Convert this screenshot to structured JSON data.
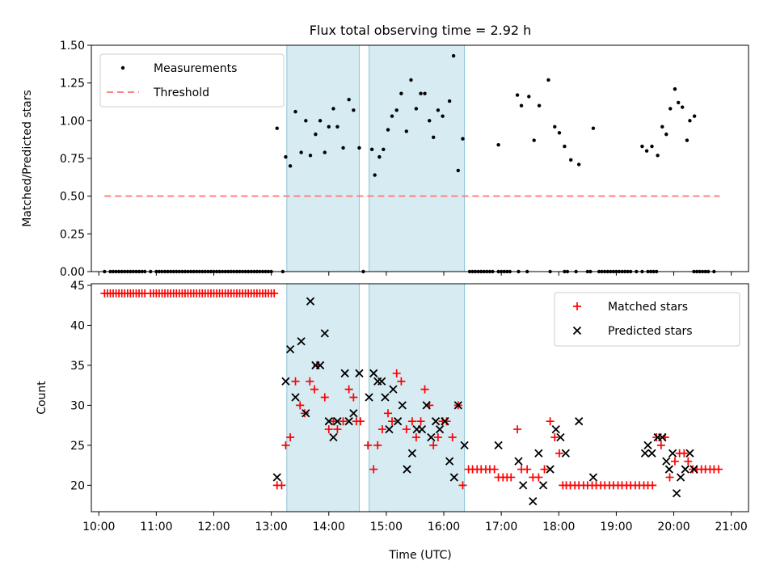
{
  "chart_data": {
    "title": "Flux total observing time = 2.92 h",
    "xlabel": "Time (UTC)",
    "x_unit": "hours UTC",
    "xlim": [
      9.87,
      21.3
    ],
    "x_ticks": [
      10,
      11,
      12,
      13,
      14,
      15,
      16,
      17,
      18,
      19,
      20,
      21
    ],
    "x_tick_labels": [
      "10:00",
      "11:00",
      "12:00",
      "13:00",
      "14:00",
      "15:00",
      "16:00",
      "17:00",
      "18:00",
      "19:00",
      "20:00",
      "21:00"
    ],
    "observing_windows": [
      [
        13.27,
        14.53
      ],
      [
        14.7,
        16.36
      ]
    ],
    "window_color": "#add8e6",
    "panels": [
      {
        "type": "scatter",
        "ylabel": "Matched/Predicted stars",
        "ylim": [
          0,
          1.5
        ],
        "y_ticks": [
          0,
          0.25,
          0.5,
          0.75,
          1.0,
          1.25,
          1.5
        ],
        "y_tick_labels": [
          "0.00",
          "0.25",
          "0.50",
          "0.75",
          "1.00",
          "1.25",
          "1.50"
        ],
        "legend": [
          "Measurements",
          "Threshold"
        ],
        "legend_loc": "upper left",
        "threshold": {
          "value": 0.5,
          "x_range": [
            10.1,
            20.8
          ],
          "color": "#ff8080"
        },
        "series": [
          {
            "name": "Measurements",
            "marker": "dot",
            "color": "#000000",
            "zero_x": [
              10.1,
              10.2,
              10.25,
              10.3,
              10.35,
              10.4,
              10.45,
              10.5,
              10.55,
              10.6,
              10.65,
              10.7,
              10.75,
              10.8,
              10.9,
              11.0,
              11.05,
              11.1,
              11.15,
              11.2,
              11.25,
              11.3,
              11.35,
              11.4,
              11.45,
              11.5,
              11.55,
              11.6,
              11.65,
              11.7,
              11.75,
              11.8,
              11.85,
              11.9,
              11.95,
              12.0,
              12.05,
              12.1,
              12.15,
              12.2,
              12.25,
              12.3,
              12.35,
              12.4,
              12.45,
              12.5,
              12.55,
              12.6,
              12.65,
              12.7,
              12.75,
              12.8,
              12.85,
              12.9,
              12.95,
              13.0,
              13.2,
              14.6,
              16.45,
              16.5,
              16.55,
              16.6,
              16.65,
              16.7,
              16.75,
              16.8,
              16.85,
              16.95,
              17.0,
              17.05,
              17.1,
              17.15,
              17.3,
              17.45,
              17.85,
              18.1,
              18.15,
              18.3,
              18.5,
              18.55,
              18.7,
              18.75,
              18.8,
              18.85,
              18.9,
              18.95,
              19.0,
              19.05,
              19.1,
              19.15,
              19.2,
              19.25,
              19.35,
              19.45,
              19.55,
              19.6,
              19.65,
              19.7,
              20.35,
              20.4,
              20.45,
              20.5,
              20.55,
              20.6,
              20.7
            ],
            "x": [
              13.1,
              13.25,
              13.33,
              13.42,
              13.52,
              13.6,
              13.68,
              13.77,
              13.85,
              13.93,
              14.0,
              14.08,
              14.15,
              14.25,
              14.35,
              14.43,
              14.53,
              14.75,
              14.8,
              14.88,
              14.95,
              15.03,
              15.1,
              15.18,
              15.26,
              15.35,
              15.43,
              15.52,
              15.6,
              15.67,
              15.75,
              15.82,
              15.9,
              15.98,
              16.1,
              16.17,
              16.25,
              16.33,
              16.95,
              17.28,
              17.35,
              17.48,
              17.57,
              17.66,
              17.82,
              17.93,
              18.01,
              18.1,
              18.21,
              18.35,
              18.6,
              19.45,
              19.53,
              19.62,
              19.72,
              19.8,
              19.87,
              19.94,
              20.02,
              20.08,
              20.15,
              20.23,
              20.28,
              20.36
            ],
            "y": [
              0.95,
              0.76,
              0.7,
              1.06,
              0.79,
              1.0,
              0.77,
              0.91,
              1.0,
              0.79,
              0.96,
              1.08,
              0.96,
              0.82,
              1.14,
              1.07,
              0.82,
              0.81,
              0.64,
              0.76,
              0.81,
              0.94,
              1.03,
              1.07,
              1.18,
              0.93,
              1.27,
              1.08,
              1.18,
              1.18,
              1.0,
              0.89,
              1.07,
              1.03,
              1.13,
              1.43,
              0.67,
              0.88,
              0.84,
              1.17,
              1.1,
              1.16,
              0.87,
              1.1,
              1.27,
              0.96,
              0.92,
              0.83,
              0.74,
              0.71,
              0.95,
              0.83,
              0.8,
              0.83,
              0.77,
              0.96,
              0.91,
              1.08,
              1.21,
              1.12,
              1.09,
              0.87,
              1.0,
              1.03
            ]
          }
        ]
      },
      {
        "type": "scatter",
        "ylabel": "Count",
        "ylim": [
          16.7,
          45.2
        ],
        "y_ticks": [
          20,
          25,
          30,
          35,
          40,
          45
        ],
        "y_tick_labels": [
          "20",
          "25",
          "30",
          "35",
          "40",
          "45"
        ],
        "legend": [
          "Matched stars",
          "Predicted stars"
        ],
        "legend_loc": "upper right",
        "series": [
          {
            "name": "Matched stars",
            "marker": "plus",
            "color": "#ff0000",
            "const_x": [
              10.1,
              10.15,
              10.2,
              10.25,
              10.3,
              10.35,
              10.4,
              10.45,
              10.5,
              10.55,
              10.6,
              10.65,
              10.7,
              10.75,
              10.8,
              10.9,
              10.95,
              11.0,
              11.05,
              11.1,
              11.15,
              11.2,
              11.25,
              11.3,
              11.35,
              11.4,
              11.45,
              11.5,
              11.55,
              11.6,
              11.65,
              11.7,
              11.75,
              11.8,
              11.85,
              11.9,
              11.95,
              12.0,
              12.05,
              12.1,
              12.15,
              12.2,
              12.25,
              12.3,
              12.35,
              12.4,
              12.45,
              12.5,
              12.55,
              12.6,
              12.65,
              12.7,
              12.75,
              12.8,
              12.85,
              12.9,
              12.95,
              13.0,
              13.05
            ],
            "const_y": 44,
            "x": [
              13.1,
              13.18,
              13.25,
              13.33,
              13.42,
              13.5,
              13.58,
              13.67,
              13.75,
              13.8,
              13.93,
              14.0,
              14.08,
              14.15,
              14.25,
              14.35,
              14.43,
              14.48,
              14.55,
              14.68,
              14.78,
              14.85,
              14.93,
              15.03,
              15.1,
              15.18,
              15.26,
              15.35,
              15.45,
              15.52,
              15.6,
              15.67,
              15.75,
              15.82,
              15.9,
              15.98,
              16.05,
              16.15,
              16.25,
              16.33,
              16.43,
              16.5,
              16.58,
              16.65,
              16.73,
              16.8,
              16.88,
              16.95,
              17.03,
              17.1,
              17.17,
              17.28,
              17.35,
              17.45,
              17.55,
              17.65,
              17.75,
              17.85,
              17.93,
              18.01,
              18.07,
              18.13,
              18.2,
              18.28,
              18.35,
              18.43,
              18.5,
              18.58,
              18.65,
              18.73,
              18.8,
              18.88,
              18.95,
              19.03,
              19.1,
              19.18,
              19.25,
              19.33,
              19.4,
              19.48,
              19.55,
              19.63,
              19.7,
              19.78,
              19.85,
              19.93,
              20.02,
              20.1,
              20.18,
              20.25,
              20.33,
              20.4,
              20.48,
              20.55,
              20.63,
              20.7,
              20.78
            ],
            "y": [
              20,
              20,
              25,
              26,
              33,
              30,
              29,
              33,
              32,
              35,
              31,
              27,
              28,
              27,
              28,
              32,
              31,
              28,
              28,
              25,
              22,
              25,
              27,
              29,
              28,
              34,
              33,
              27,
              28,
              26,
              28,
              32,
              30,
              25,
              26,
              28,
              28,
              26,
              30,
              20,
              22,
              22,
              22,
              22,
              22,
              22,
              22,
              21,
              21,
              21,
              21,
              27,
              22,
              22,
              21,
              21,
              22,
              28,
              26,
              24,
              20,
              20,
              20,
              20,
              20,
              20,
              20,
              20,
              20,
              20,
              20,
              20,
              20,
              20,
              20,
              20,
              20,
              20,
              20,
              20,
              20,
              20,
              26,
              25,
              26,
              21,
              23,
              24,
              24,
              23,
              22,
              22,
              22,
              22,
              22,
              22,
              22
            ]
          },
          {
            "name": "Predicted stars",
            "marker": "x",
            "color": "#000000",
            "x": [
              13.1,
              13.25,
              13.33,
              13.42,
              13.52,
              13.6,
              13.68,
              13.77,
              13.85,
              13.93,
              14.0,
              14.08,
              14.15,
              14.28,
              14.35,
              14.43,
              14.53,
              14.7,
              14.78,
              14.85,
              14.92,
              14.98,
              15.05,
              15.12,
              15.2,
              15.28,
              15.36,
              15.45,
              15.53,
              15.62,
              15.7,
              15.78,
              15.86,
              15.93,
              16.02,
              16.1,
              16.18,
              16.25,
              16.36,
              16.95,
              17.3,
              17.38,
              17.55,
              17.65,
              17.73,
              17.85,
              17.95,
              18.03,
              18.12,
              18.35,
              18.6,
              19.5,
              19.55,
              19.62,
              19.72,
              19.8,
              19.87,
              19.92,
              19.98,
              20.05,
              20.12,
              20.2,
              20.28,
              20.35
            ],
            "y": [
              21,
              33,
              37,
              31,
              38,
              29,
              43,
              35,
              35,
              39,
              28,
              26,
              28,
              34,
              28,
              29,
              34,
              31,
              34,
              33,
              33,
              31,
              27,
              32,
              28,
              30,
              22,
              24,
              27,
              27,
              30,
              26,
              28,
              27,
              28,
              23,
              21,
              30,
              25,
              25,
              23,
              20,
              18,
              24,
              20,
              22,
              27,
              26,
              24,
              28,
              21,
              24,
              25,
              24,
              26,
              26,
              23,
              22,
              24,
              19,
              21,
              22,
              24,
              22
            ]
          }
        ]
      }
    ]
  }
}
